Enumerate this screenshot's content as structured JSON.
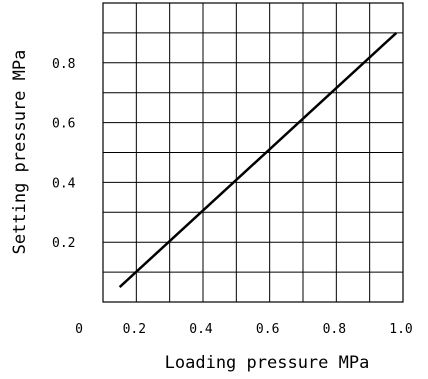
{
  "chart_data": {
    "type": "line",
    "title": "",
    "xlabel": "Loading pressure  MPa",
    "ylabel": "Setting pressure  MPa",
    "xlim": [
      0.1,
      1.0
    ],
    "ylim": [
      0.0,
      1.0
    ],
    "x_ticks": [
      {
        "value": 0.2,
        "label": "0.2"
      },
      {
        "value": 0.4,
        "label": "0.4"
      },
      {
        "value": 0.6,
        "label": "0.6"
      },
      {
        "value": 0.8,
        "label": "0.8"
      },
      {
        "value": 1.0,
        "label": "1.0"
      }
    ],
    "x_origin_label": "0",
    "y_ticks": [
      {
        "value": 0.2,
        "label": "0.2"
      },
      {
        "value": 0.4,
        "label": "0.4"
      },
      {
        "value": 0.6,
        "label": "0.6"
      },
      {
        "value": 0.8,
        "label": "0.8"
      }
    ],
    "grid": true,
    "series": [
      {
        "x": [
          0.15,
          0.98
        ],
        "y": [
          0.05,
          0.9
        ]
      }
    ],
    "line_color": "#000000",
    "grid_color": "#000000"
  }
}
